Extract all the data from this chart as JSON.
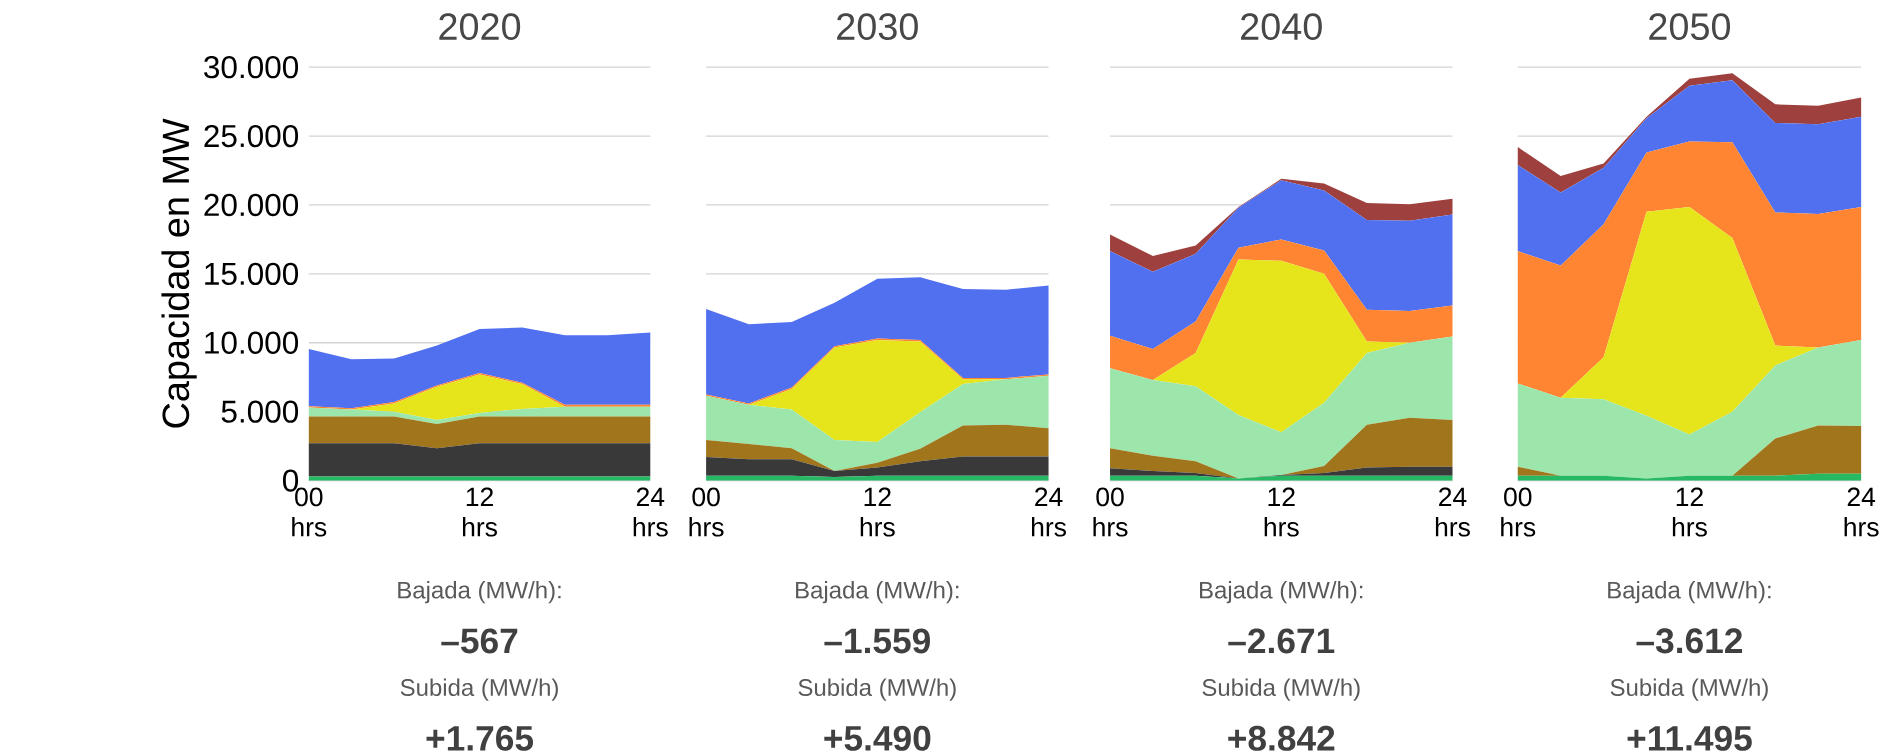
{
  "chart_data": [
    {
      "type": "area",
      "stacked": true,
      "title": "2020",
      "ylabel": "Capacidad en MW",
      "grid": "y",
      "x": [
        0,
        3,
        6,
        9,
        12,
        15,
        18,
        21,
        24
      ],
      "xlim": [
        0,
        24
      ],
      "xticks": [
        {
          "value": 0,
          "label": "00 hrs"
        },
        {
          "value": 12,
          "label": "12 hrs"
        },
        {
          "value": 24,
          "label": "24 hrs"
        }
      ],
      "ylim": [
        0,
        30000
      ],
      "yticks": [
        0,
        {
          "value": 5000,
          "label": "5.000"
        },
        {
          "value": 10000,
          "label": "10.000"
        },
        {
          "value": 15000,
          "label": "15.000"
        },
        {
          "value": 20000,
          "label": "20.000"
        },
        {
          "value": 25000,
          "label": "25.000"
        },
        {
          "value": 30000,
          "label": "30.000"
        }
      ],
      "series": [
        {
          "color": "#27b863",
          "values": [
            300,
            300,
            300,
            300,
            300,
            300,
            300,
            300,
            300
          ]
        },
        {
          "color": "#393939",
          "values": [
            2400,
            2400,
            2400,
            2050,
            2400,
            2400,
            2400,
            2400,
            2400
          ]
        },
        {
          "color": "#a0751b",
          "values": [
            1950,
            1950,
            1950,
            1750,
            1950,
            1950,
            1950,
            1950,
            1950
          ]
        },
        {
          "color": "#9ce6ab",
          "values": [
            650,
            500,
            350,
            300,
            250,
            550,
            700,
            700,
            700
          ]
        },
        {
          "color": "#e6e41b",
          "values": [
            0,
            0,
            600,
            2400,
            2800,
            1800,
            0,
            0,
            0
          ]
        },
        {
          "color": "#ff8533",
          "values": [
            100,
            100,
            100,
            100,
            100,
            100,
            150,
            150,
            150
          ]
        },
        {
          "color": "#5170ef",
          "values": [
            4150,
            3550,
            3150,
            2900,
            3200,
            4000,
            5050,
            5050,
            5250
          ]
        }
      ],
      "annotations": [
        "Bajada (MW/h):",
        "–567",
        "Subida (MW/h)",
        "+1.765"
      ]
    },
    {
      "type": "area",
      "stacked": true,
      "title": "2030",
      "grid": "y",
      "tick_labels": "x",
      "x": [
        0,
        3,
        6,
        9,
        12,
        15,
        18,
        21,
        24
      ],
      "xlim": [
        0,
        24
      ],
      "xticks": [
        {
          "value": 0,
          "label": "00 hrs"
        },
        {
          "value": 12,
          "label": "12 hrs"
        },
        {
          "value": 24,
          "label": "24 hrs"
        }
      ],
      "ylim": [
        0,
        30000
      ],
      "yticks": [
        0,
        5000,
        10000,
        15000,
        20000,
        25000,
        30000
      ],
      "series": [
        {
          "color": "#27b863",
          "values": [
            350,
            350,
            350,
            250,
            350,
            350,
            350,
            350,
            350
          ]
        },
        {
          "color": "#393939",
          "values": [
            1350,
            1200,
            1200,
            450,
            600,
            1050,
            1400,
            1400,
            1400
          ]
        },
        {
          "color": "#a0751b",
          "values": [
            1250,
            1100,
            800,
            0,
            350,
            900,
            2250,
            2300,
            2050
          ]
        },
        {
          "color": "#9ce6ab",
          "values": [
            3200,
            2850,
            2800,
            2250,
            1500,
            2650,
            3000,
            3300,
            3800
          ]
        },
        {
          "color": "#e6e41b",
          "values": [
            0,
            0,
            1500,
            6700,
            7400,
            5150,
            350,
            0,
            0
          ]
        },
        {
          "color": "#ff8533",
          "values": [
            100,
            100,
            100,
            100,
            100,
            100,
            100,
            100,
            100
          ]
        },
        {
          "color": "#5170ef",
          "values": [
            6200,
            5750,
            4750,
            3150,
            4350,
            4550,
            6450,
            6400,
            6450
          ]
        }
      ],
      "annotations": [
        "Bajada (MW/h):",
        "–1.559",
        "Subida (MW/h)",
        "+5.490"
      ]
    },
    {
      "type": "area",
      "stacked": true,
      "title": "2040",
      "grid": "y",
      "tick_labels": "x",
      "x": [
        0,
        3,
        6,
        9,
        12,
        15,
        18,
        21,
        24
      ],
      "xlim": [
        0,
        24
      ],
      "xticks": [
        {
          "value": 0,
          "label": "00 hrs"
        },
        {
          "value": 12,
          "label": "12 hrs"
        },
        {
          "value": 24,
          "label": "24 hrs"
        }
      ],
      "ylim": [
        0,
        30000
      ],
      "yticks": [
        0,
        5000,
        10000,
        15000,
        20000,
        25000,
        30000
      ],
      "series": [
        {
          "color": "#27b863",
          "values": [
            350,
            350,
            350,
            150,
            350,
            350,
            350,
            350,
            350
          ]
        },
        {
          "color": "#393939",
          "values": [
            550,
            350,
            200,
            0,
            50,
            200,
            600,
            650,
            650
          ]
        },
        {
          "color": "#a0751b",
          "values": [
            1450,
            1100,
            850,
            0,
            0,
            500,
            3100,
            3550,
            3400
          ]
        },
        {
          "color": "#9ce6ab",
          "values": [
            5800,
            5500,
            5450,
            4600,
            3100,
            4600,
            5200,
            5450,
            6050
          ]
        },
        {
          "color": "#e6e41b",
          "values": [
            0,
            0,
            2400,
            11300,
            12450,
            9350,
            850,
            0,
            0
          ]
        },
        {
          "color": "#ff8533",
          "values": [
            2350,
            2250,
            2300,
            850,
            1550,
            1700,
            2300,
            2300,
            2250
          ]
        },
        {
          "color": "#5170ef",
          "values": [
            6150,
            5600,
            4900,
            2900,
            4300,
            4350,
            6500,
            6550,
            6600
          ]
        },
        {
          "color": "#9e403d",
          "values": [
            1200,
            1150,
            600,
            50,
            100,
            500,
            1250,
            1200,
            1150
          ]
        }
      ],
      "annotations": [
        "Bajada (MW/h):",
        "–2.671",
        "Subida (MW/h)",
        "+8.842"
      ]
    },
    {
      "type": "area",
      "stacked": true,
      "title": "2050",
      "grid": "y",
      "tick_labels": "x",
      "x": [
        0,
        3,
        6,
        9,
        12,
        15,
        18,
        21,
        24
      ],
      "xlim": [
        0,
        24
      ],
      "xticks": [
        {
          "value": 0,
          "label": "00 hrs"
        },
        {
          "value": 12,
          "label": "12 hrs"
        },
        {
          "value": 24,
          "label": "24 hrs"
        }
      ],
      "ylim": [
        0,
        30000
      ],
      "yticks": [
        0,
        5000,
        10000,
        15000,
        20000,
        25000,
        30000
      ],
      "series": [
        {
          "color": "#27b863",
          "values": [
            350,
            350,
            350,
            150,
            350,
            350,
            350,
            500,
            500
          ]
        },
        {
          "color": "#a0751b",
          "values": [
            650,
            0,
            0,
            0,
            0,
            0,
            2700,
            3500,
            3450
          ]
        },
        {
          "color": "#9ce6ab",
          "values": [
            6050,
            5650,
            5550,
            4550,
            3000,
            4650,
            5300,
            5650,
            6250
          ]
        },
        {
          "color": "#e6e41b",
          "values": [
            0,
            0,
            3050,
            14800,
            16500,
            12600,
            1450,
            0,
            0
          ]
        },
        {
          "color": "#ff8533",
          "values": [
            9600,
            9600,
            9650,
            4300,
            4750,
            6950,
            9650,
            9700,
            9650
          ]
        },
        {
          "color": "#5170ef",
          "values": [
            6250,
            5300,
            4100,
            2500,
            4050,
            4500,
            6500,
            6500,
            6550
          ]
        },
        {
          "color": "#9e403d",
          "values": [
            1300,
            1200,
            300,
            100,
            500,
            500,
            1350,
            1350,
            1400
          ]
        }
      ],
      "annotations": [
        "Bajada (MW/h):",
        "–3.612",
        "Subida (MW/h)",
        "+11.495"
      ]
    }
  ]
}
